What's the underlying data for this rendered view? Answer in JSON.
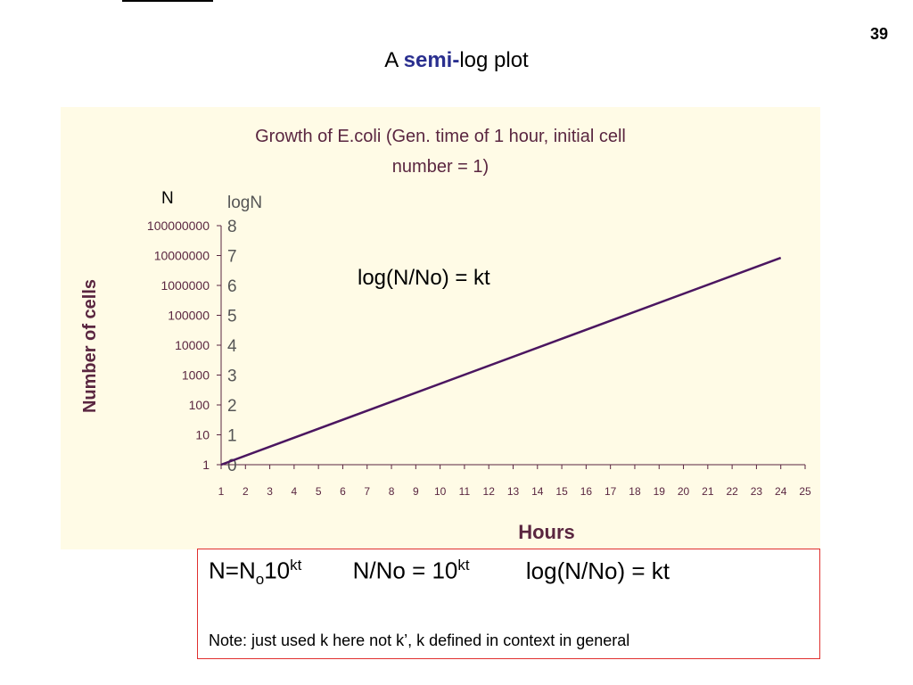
{
  "slide": {
    "page_number": "39",
    "title_prefix": "A ",
    "title_accent": "semi-",
    "title_suffix": "log plot"
  },
  "formulas": {
    "f1_a": "N=N",
    "f1_sub": "o",
    "f1_b": "10",
    "f1_sup": "kt",
    "f2_a": "N/No = 10",
    "f2_sup": "kt",
    "f3": "log(N/No) = kt",
    "note": "Note: just used k here not k’, k defined in context in general"
  },
  "chart_data": {
    "type": "line",
    "scale": "log10",
    "title_line1": "Growth of E.coli (Gen. time of 1 hour, initial cell",
    "title_line2": "number = 1)",
    "xlabel": "Hours",
    "ylabel": "Number of cells",
    "left_axis_header": "N",
    "right_axis_header": "logN",
    "annotation": "log(N/No) = kt",
    "x_ticks": [
      "1",
      "2",
      "3",
      "4",
      "5",
      "6",
      "7",
      "8",
      "9",
      "10",
      "11",
      "12",
      "13",
      "14",
      "15",
      "16",
      "17",
      "18",
      "19",
      "20",
      "21",
      "22",
      "23",
      "24",
      "25"
    ],
    "y_ticks": [
      "1",
      "10",
      "100",
      "1000",
      "10000",
      "100000",
      "1000000",
      "10000000",
      "100000000"
    ],
    "y_tick_values": [
      1,
      10,
      100,
      1000,
      10000,
      100000,
      1000000,
      10000000,
      100000000
    ],
    "logN_ticks": [
      "0",
      "1",
      "2",
      "3",
      "4",
      "5",
      "6",
      "7",
      "8"
    ],
    "xlim": [
      1,
      25
    ],
    "ylim": [
      1,
      100000000
    ],
    "series": [
      {
        "x": [
          1,
          24
        ],
        "y": [
          1,
          8388608
        ]
      }
    ],
    "colors": {
      "line": "#4b1660",
      "text": "#5a2640",
      "background": "#fffbe6",
      "logN": "#555555"
    },
    "grid": false
  }
}
